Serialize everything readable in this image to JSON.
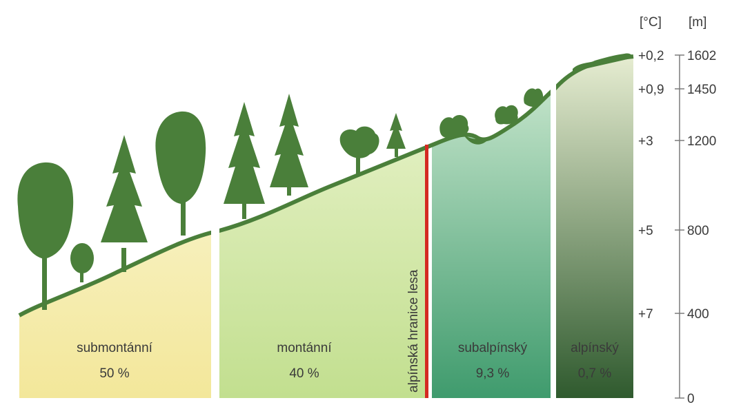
{
  "axis": {
    "temp_header": "[°C]",
    "elev_header": "[m]",
    "temperature_labels": [
      "+0,2",
      "+0,9",
      "+3",
      "+5",
      "+7"
    ],
    "elevation_labels": [
      "1602",
      "1450",
      "1200",
      "800",
      "400",
      "0"
    ]
  },
  "zones": [
    {
      "name": "submontánní",
      "share": "50 %",
      "color": "#f1eeaa"
    },
    {
      "name": "montánní",
      "share": "40 %",
      "color": "#d4e8a6"
    },
    {
      "name": "subalpínský",
      "share": "9,3 %",
      "color": "#5aa77c"
    },
    {
      "name": "alpínský",
      "share": "0,7 %",
      "color": "#3f6a39"
    }
  ],
  "treeline": {
    "label": "alpínská hranice lesa",
    "color": "#d42a22"
  },
  "colors": {
    "vegetation": "#4a7f3a",
    "axis": "#7a7a7a"
  },
  "icons": [
    "deciduous-tree-icon",
    "spruce-tree-icon",
    "shrub-icon"
  ]
}
